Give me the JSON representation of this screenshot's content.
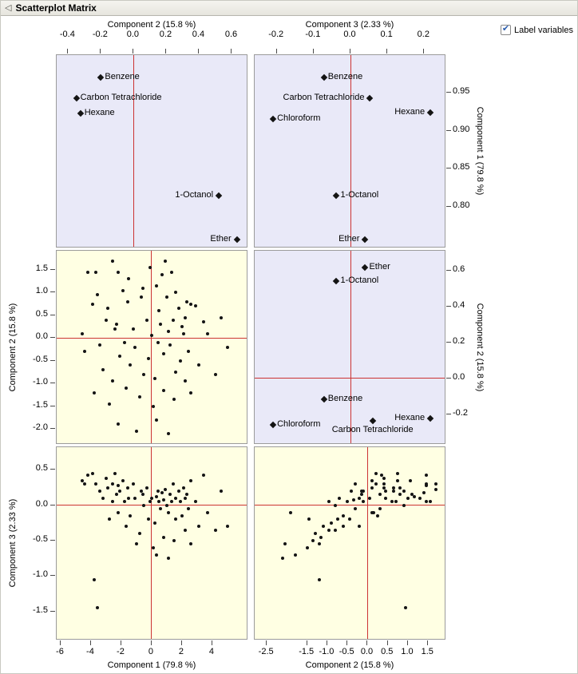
{
  "header": {
    "title": "Scatterplot Matrix",
    "disclosure_glyph": "◁"
  },
  "controls": {
    "label_variables_label": "Label variables",
    "label_variables_checked": true,
    "checkbox_glyph": "✔"
  },
  "colors": {
    "loadings_bg": "#e9e9f8",
    "scores_bg": "#ffffe3",
    "ref_line": "#cc3333",
    "check_color": "#2a5cad",
    "point_color": "#141414"
  },
  "chart_data": {
    "type": "scatter",
    "subtype": "scatterplot_matrix",
    "title": "Scatterplot Matrix",
    "components": [
      "Component 1 (79.8 %)",
      "Component 2 (15.8 %)",
      "Component 3 (2.33 %)"
    ],
    "panels": {
      "tl": {
        "kind": "loadings",
        "x_label": "Component 2 (15.8 %)",
        "y_label": "Component 1 (79.8 %)",
        "xlim": [
          -0.47,
          0.7
        ],
        "ylim": [
          0.745,
          1.0
        ],
        "points": [
          {
            "label": "Benzene",
            "x": -0.2,
            "y": 0.97,
            "side": "right"
          },
          {
            "label": "Carbon Tetrachloride",
            "x": -0.35,
            "y": 0.943,
            "side": "right"
          },
          {
            "label": "Hexane",
            "x": -0.325,
            "y": 0.923,
            "side": "right"
          },
          {
            "label": "1-Octanol",
            "x": 0.52,
            "y": 0.815,
            "side": "left"
          },
          {
            "label": "Ether",
            "x": 0.63,
            "y": 0.757,
            "side": "left"
          }
        ]
      },
      "tr": {
        "kind": "loadings",
        "x_label": "Component 3 (2.33 %)",
        "y_label": "Component 1 (79.8 %)",
        "xlim": [
          -0.26,
          0.26
        ],
        "ylim": [
          0.745,
          1.0
        ],
        "points": [
          {
            "label": "Benzene",
            "x": -0.072,
            "y": 0.971,
            "side": "right"
          },
          {
            "label": "Carbon Tetrachloride",
            "x": 0.053,
            "y": 0.943,
            "side": "left"
          },
          {
            "label": "Hexane",
            "x": 0.217,
            "y": 0.924,
            "side": "left"
          },
          {
            "label": "Chloroform",
            "x": -0.21,
            "y": 0.916,
            "side": "right"
          },
          {
            "label": "1-Octanol",
            "x": -0.038,
            "y": 0.815,
            "side": "right"
          },
          {
            "label": "Ether",
            "x": 0.04,
            "y": 0.757,
            "side": "left"
          }
        ]
      },
      "ml": {
        "kind": "scores",
        "x_label": "Component 1 (79.8 %)",
        "y_label": "Component 2 (15.8 %)",
        "x_comp": 0,
        "y_comp": 1,
        "xlim": [
          -6.26,
          6.37
        ],
        "ylim": [
          -2.35,
          1.92
        ]
      },
      "mr": {
        "kind": "loadings",
        "x_label": "Component 3 (2.33 %)",
        "y_label": "Component 2 (15.8 %)",
        "xlim": [
          -0.26,
          0.26
        ],
        "ylim": [
          -0.37,
          0.71
        ],
        "points": [
          {
            "label": "Ether",
            "x": 0.04,
            "y": 0.615,
            "side": "right"
          },
          {
            "label": "1-Octanol",
            "x": -0.038,
            "y": 0.54,
            "side": "right"
          },
          {
            "label": "Benzene",
            "x": -0.072,
            "y": -0.115,
            "side": "right"
          },
          {
            "label": "Chloroform",
            "x": -0.21,
            "y": -0.26,
            "side": "right"
          },
          {
            "label": "Carbon Tetrachloride",
            "x": 0.06,
            "y": -0.235,
            "side": "below"
          },
          {
            "label": "Hexane",
            "x": 0.217,
            "y": -0.225,
            "side": "left"
          }
        ]
      },
      "bl": {
        "kind": "scores",
        "x_label": "Component 1 (79.8 %)",
        "y_label": "Component 3 (2.33 %)",
        "x_comp": 0,
        "y_comp": 2,
        "xlim": [
          -6.26,
          6.37
        ],
        "ylim": [
          -1.91,
          0.82
        ]
      },
      "br": {
        "kind": "scores",
        "x_label": "Component 2 (15.8 %)",
        "y_label": "Component 3 (2.33 %)",
        "x_comp": 1,
        "y_comp": 2,
        "xlim": [
          -2.8,
          1.95
        ],
        "ylim": [
          -1.91,
          0.82
        ]
      }
    },
    "axes": [
      {
        "panel": "tl",
        "edge": "top",
        "title": "Component 2 (15.8 %)",
        "ticks": [
          "-0.4",
          "-0.2",
          "0.0",
          "0.2",
          "0.4",
          "0.6"
        ]
      },
      {
        "panel": "tr",
        "edge": "top",
        "title": "Component 3 (2.33 %)",
        "ticks": [
          "-0.2",
          "-0.1",
          "0.0",
          "0.1",
          "0.2"
        ]
      },
      {
        "panel": "tr",
        "edge": "right",
        "title": "Component 1 (79.8 %)",
        "ticks": [
          "0.95",
          "0.90",
          "0.85",
          "0.80"
        ]
      },
      {
        "panel": "mr",
        "edge": "right",
        "title": "Component 2 (15.8 %)",
        "ticks": [
          "0.6",
          "0.4",
          "0.2",
          "0.0",
          "-0.2"
        ]
      },
      {
        "panel": "ml",
        "edge": "left",
        "title": "Component 2 (15.8 %)",
        "ticks": [
          "1.5",
          "1.0",
          "0.5",
          "0.0",
          "-0.5",
          "-1.0",
          "-1.5",
          "-2.0"
        ]
      },
      {
        "panel": "bl",
        "edge": "left",
        "title": "Component 3 (2.33 %)",
        "ticks": [
          "0.5",
          "0.0",
          "-0.5",
          "-1.0",
          "-1.5"
        ]
      },
      {
        "panel": "bl",
        "edge": "bottom",
        "title": "Component 1 (79.8 %)",
        "ticks": [
          "-6",
          "-4",
          "-2",
          "0",
          "2",
          "4"
        ]
      },
      {
        "panel": "br",
        "edge": "bottom",
        "title": "Component 2 (15.8 %)",
        "ticks": [
          "-2.5",
          "-1.5",
          "-1.0",
          "-0.5",
          "0.0",
          "0.5",
          "1.0",
          "1.5"
        ]
      }
    ],
    "score_points": [
      [
        -4.6,
        0.1,
        0.35
      ],
      [
        -4.4,
        -0.3,
        0.3
      ],
      [
        -4.2,
        1.45,
        0.42
      ],
      [
        -3.9,
        0.75,
        0.45
      ],
      [
        -3.8,
        -1.2,
        -1.05
      ],
      [
        -3.7,
        1.45,
        0.3
      ],
      [
        -3.6,
        0.95,
        -1.45
      ],
      [
        -3.4,
        -0.15,
        0.2
      ],
      [
        -3.2,
        -0.7,
        0.1
      ],
      [
        -3.0,
        0.4,
        0.38
      ],
      [
        -2.9,
        0.65,
        0.25
      ],
      [
        -2.8,
        -1.45,
        -0.2
      ],
      [
        -2.6,
        1.7,
        0.3
      ],
      [
        -2.6,
        -0.95,
        0.05
      ],
      [
        -2.4,
        0.2,
        0.45
      ],
      [
        -2.3,
        0.3,
        0.15
      ],
      [
        -2.2,
        1.45,
        0.28
      ],
      [
        -2.2,
        -1.9,
        -0.1
      ],
      [
        -2.1,
        -0.4,
        0.2
      ],
      [
        -1.9,
        1.05,
        0.35
      ],
      [
        -1.8,
        -0.1,
        0.05
      ],
      [
        -1.7,
        -1.1,
        -0.3
      ],
      [
        -1.6,
        0.8,
        0.25
      ],
      [
        -1.5,
        1.3,
        0.1
      ],
      [
        -1.4,
        -0.6,
        -0.15
      ],
      [
        -1.2,
        0.2,
        0.3
      ],
      [
        -1.1,
        -0.2,
        0.1
      ],
      [
        -1.0,
        -2.05,
        -0.55
      ],
      [
        -0.8,
        -1.3,
        -0.4
      ],
      [
        -0.7,
        0.9,
        0.2
      ],
      [
        -0.6,
        1.1,
        0.15
      ],
      [
        -0.5,
        -0.8,
        0.0
      ],
      [
        -0.3,
        0.4,
        0.25
      ],
      [
        -0.2,
        -0.45,
        -0.2
      ],
      [
        -0.1,
        1.55,
        0.05
      ],
      [
        0.0,
        0.05,
        0.1
      ],
      [
        0.1,
        -1.5,
        -0.6
      ],
      [
        0.2,
        -0.9,
        -0.25
      ],
      [
        0.3,
        1.15,
        0.12
      ],
      [
        0.3,
        -1.8,
        -0.7
      ],
      [
        0.4,
        -0.1,
        0.2
      ],
      [
        0.5,
        0.6,
        0.05
      ],
      [
        0.6,
        0.3,
        -0.05
      ],
      [
        0.7,
        1.4,
        0.18
      ],
      [
        0.8,
        -0.35,
        0.08
      ],
      [
        0.8,
        -1.15,
        -0.45
      ],
      [
        0.9,
        1.7,
        0.22
      ],
      [
        1.0,
        0.9,
        0.0
      ],
      [
        1.1,
        0.15,
        -0.1
      ],
      [
        1.1,
        -2.1,
        -0.75
      ],
      [
        1.2,
        -0.15,
        0.15
      ],
      [
        1.3,
        1.45,
        0.05
      ],
      [
        1.4,
        0.4,
        0.3
      ],
      [
        1.5,
        -1.35,
        -0.5
      ],
      [
        1.6,
        1.0,
        0.1
      ],
      [
        1.6,
        -0.75,
        -0.2
      ],
      [
        1.8,
        0.65,
        0.2
      ],
      [
        1.9,
        -0.5,
        0.05
      ],
      [
        2.0,
        0.25,
        -0.15
      ],
      [
        2.1,
        0.1,
        0.25
      ],
      [
        2.2,
        0.45,
        0.1
      ],
      [
        2.2,
        -0.95,
        -0.35
      ],
      [
        2.3,
        0.8,
        0.15
      ],
      [
        2.4,
        -0.3,
        -0.05
      ],
      [
        2.6,
        0.75,
        0.35
      ],
      [
        2.6,
        -1.2,
        -0.55
      ],
      [
        2.9,
        0.7,
        0.05
      ],
      [
        3.1,
        -0.6,
        -0.3
      ],
      [
        3.4,
        0.35,
        0.42
      ],
      [
        3.7,
        0.1,
        -0.1
      ],
      [
        4.2,
        -0.8,
        -0.35
      ],
      [
        4.6,
        0.45,
        0.2
      ],
      [
        5.0,
        -0.2,
        -0.3
      ]
    ]
  }
}
